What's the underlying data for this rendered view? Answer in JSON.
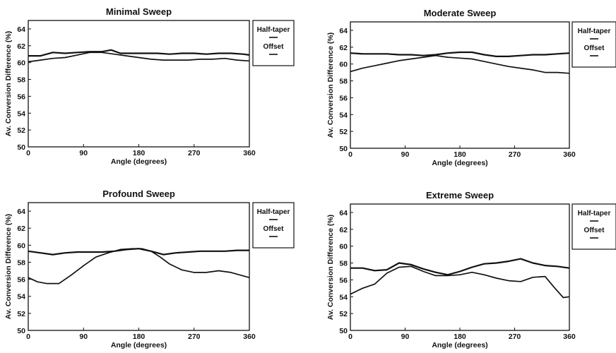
{
  "chart_data": [
    {
      "type": "line",
      "title": "Minimal Sweep",
      "xlabel": "Angle (degrees)",
      "ylabel": "Av. Conversion Difference (%)",
      "xlim": [
        0,
        360
      ],
      "ylim": [
        50,
        65
      ],
      "xticks": [
        "0",
        "90",
        "180",
        "270",
        "360"
      ],
      "yticks": [
        "50",
        "52",
        "54",
        "56",
        "58",
        "60",
        "62",
        "64"
      ],
      "grid": false,
      "legend": "right",
      "series": [
        {
          "name": "Half-taper",
          "x": [
            0,
            20,
            40,
            60,
            80,
            100,
            120,
            135,
            150,
            170,
            190,
            210,
            230,
            250,
            270,
            290,
            310,
            330,
            350,
            360
          ],
          "values": [
            60.8,
            60.8,
            61.2,
            61.1,
            61.2,
            61.3,
            61.3,
            61.5,
            61.1,
            61.1,
            61.1,
            61.1,
            61.0,
            61.1,
            61.1,
            61.0,
            61.1,
            61.1,
            61.0,
            60.9
          ]
        },
        {
          "name": "Offset",
          "x": [
            0,
            20,
            40,
            60,
            80,
            100,
            120,
            140,
            160,
            180,
            200,
            220,
            240,
            260,
            280,
            300,
            320,
            340,
            360
          ],
          "values": [
            60.1,
            60.3,
            60.5,
            60.6,
            60.9,
            61.2,
            61.2,
            61.0,
            60.8,
            60.6,
            60.4,
            60.3,
            60.3,
            60.3,
            60.4,
            60.4,
            60.5,
            60.3,
            60.2
          ]
        }
      ]
    },
    {
      "type": "line",
      "title": "Moderate Sweep",
      "xlabel": "Angle (degrees)",
      "ylabel": "Av. Conversion Difference (%)",
      "xlim": [
        0,
        360
      ],
      "ylim": [
        50,
        65
      ],
      "xticks": [
        "0",
        "90",
        "180",
        "270",
        "360"
      ],
      "yticks": [
        "50",
        "52",
        "54",
        "56",
        "58",
        "60",
        "62",
        "64"
      ],
      "grid": false,
      "legend": "right",
      "series": [
        {
          "name": "Half-taper",
          "x": [
            0,
            20,
            40,
            60,
            80,
            100,
            120,
            140,
            160,
            180,
            200,
            220,
            240,
            260,
            280,
            300,
            320,
            340,
            360
          ],
          "values": [
            61.3,
            61.2,
            61.2,
            61.2,
            61.1,
            61.1,
            61.0,
            61.1,
            61.3,
            61.4,
            61.4,
            61.1,
            60.9,
            60.9,
            61.0,
            61.1,
            61.1,
            61.2,
            61.3
          ]
        },
        {
          "name": "Offset",
          "x": [
            0,
            20,
            40,
            60,
            80,
            100,
            120,
            140,
            160,
            180,
            200,
            220,
            240,
            260,
            280,
            300,
            320,
            340,
            360
          ],
          "values": [
            59.1,
            59.5,
            59.8,
            60.1,
            60.4,
            60.6,
            60.8,
            61.0,
            60.8,
            60.7,
            60.6,
            60.3,
            60.0,
            59.7,
            59.5,
            59.3,
            59.0,
            59.0,
            58.9
          ]
        }
      ]
    },
    {
      "type": "line",
      "title": "Profound Sweep",
      "xlabel": "Angle (degrees)",
      "ylabel": "Av. Conversion Difference (%)",
      "xlim": [
        0,
        360
      ],
      "ylim": [
        50,
        65
      ],
      "xticks": [
        "0",
        "90",
        "180",
        "270",
        "360"
      ],
      "yticks": [
        "50",
        "52",
        "54",
        "56",
        "58",
        "60",
        "62",
        "64"
      ],
      "grid": false,
      "legend": "right",
      "series": [
        {
          "name": "Half-taper",
          "x": [
            0,
            20,
            40,
            60,
            80,
            100,
            120,
            140,
            160,
            180,
            200,
            220,
            240,
            260,
            280,
            300,
            320,
            340,
            360
          ],
          "values": [
            59.3,
            59.1,
            58.9,
            59.1,
            59.2,
            59.2,
            59.2,
            59.3,
            59.5,
            59.6,
            59.3,
            58.9,
            59.1,
            59.2,
            59.3,
            59.3,
            59.3,
            59.4,
            59.4
          ]
        },
        {
          "name": "Offset",
          "x": [
            0,
            15,
            30,
            50,
            70,
            90,
            110,
            130,
            150,
            170,
            185,
            200,
            215,
            230,
            250,
            270,
            290,
            310,
            330,
            350,
            360
          ],
          "values": [
            56.2,
            55.7,
            55.5,
            55.5,
            56.5,
            57.6,
            58.6,
            59.1,
            59.5,
            59.6,
            59.6,
            59.3,
            58.6,
            57.8,
            57.1,
            56.8,
            56.8,
            57.0,
            56.8,
            56.4,
            56.2
          ]
        }
      ]
    },
    {
      "type": "line",
      "title": "Extreme Sweep",
      "xlabel": "Angle (degrees)",
      "ylabel": "Av. Conversion Difference (%)",
      "xlim": [
        0,
        360
      ],
      "ylim": [
        50,
        65
      ],
      "xticks": [
        "0",
        "90",
        "180",
        "270",
        "360"
      ],
      "yticks": [
        "50",
        "52",
        "54",
        "56",
        "58",
        "60",
        "62",
        "64"
      ],
      "grid": false,
      "legend": "right",
      "series": [
        {
          "name": "Half-taper",
          "x": [
            0,
            20,
            40,
            60,
            80,
            100,
            120,
            140,
            160,
            180,
            200,
            220,
            240,
            260,
            280,
            300,
            320,
            340,
            360
          ],
          "values": [
            57.4,
            57.4,
            57.1,
            57.2,
            58.0,
            57.8,
            57.3,
            56.9,
            56.6,
            57.0,
            57.5,
            57.9,
            58.0,
            58.2,
            58.5,
            58.0,
            57.7,
            57.6,
            57.4
          ]
        },
        {
          "name": "Offset",
          "x": [
            0,
            20,
            40,
            60,
            80,
            100,
            120,
            140,
            160,
            180,
            200,
            220,
            240,
            260,
            280,
            300,
            320,
            335,
            350,
            360
          ],
          "values": [
            54.3,
            55.0,
            55.5,
            56.8,
            57.5,
            57.6,
            57.0,
            56.5,
            56.5,
            56.6,
            56.9,
            56.6,
            56.2,
            55.9,
            55.8,
            56.3,
            56.4,
            55.1,
            53.9,
            54.0
          ]
        }
      ]
    }
  ]
}
